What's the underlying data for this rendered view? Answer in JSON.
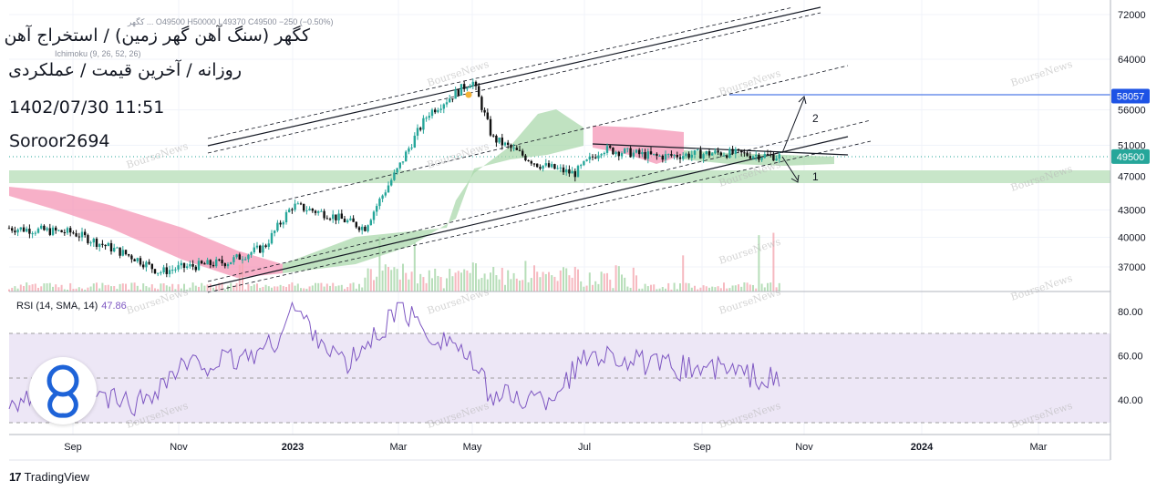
{
  "header": {
    "title_line": "کگهر (سنگ آهن گهر زمین) / استخراج آهن",
    "subtitle_line": "روزانه / آخرین قیمت / عملکردی",
    "datetime": "1402/07/30 11:51",
    "author": "Soroor2694"
  },
  "legend": {
    "ohlc_line": "کگهر ... O49500 H50000 L49370 C49500 −250 (−0.50%)",
    "ichimoku_line": "Ichimoku (9, 26, 52, 26)"
  },
  "rsi_label": {
    "name": "RSI (14, SMA, 14)",
    "value": "47.86"
  },
  "watermark": "BourseNews",
  "footer": {
    "brand": "TradingView",
    "mark": "17"
  },
  "colors": {
    "up": "#26a69a",
    "down": "#111111",
    "cloud_bull": "#a5d6a7",
    "cloud_bear": "#f48fb1",
    "rsi": "#7e57c2",
    "rsi_band": "#ede7f6",
    "target_line": "#1e53e5",
    "support_zone": "#c8e6c9"
  },
  "chart_data": [
    {
      "type": "candlestick",
      "title": "کگهر (سنگ آهن گهر زمین) / استخراج آهن",
      "y_axis": {
        "ticks": [
          37000,
          40000,
          43000,
          47000,
          51000,
          56000,
          64000,
          72000
        ],
        "scale": "log",
        "ylim": [
          34500,
          74000
        ]
      },
      "x_axis": {
        "tick_labels": [
          "Sep",
          "Nov",
          "2023",
          "Mar",
          "May",
          "Jul",
          "Sep",
          "Nov",
          "2024",
          "Mar"
        ]
      },
      "price_markers": [
        {
          "label": "58057",
          "value": 58057,
          "color": "#1e53e5"
        },
        {
          "label": "49500",
          "value": 49500,
          "color": "#26a69a"
        }
      ],
      "annotations": [
        {
          "text": "2",
          "meaning": "upside target to 58057"
        },
        {
          "text": "1",
          "meaning": "downside to support zone"
        }
      ],
      "support_zone": [
        46400,
        48000
      ],
      "series": [
        {
          "name": "Close",
          "points": [
            [
              "Aug",
              41000
            ],
            [
              "Sep",
              40500
            ],
            [
              "Oct",
              37800
            ],
            [
              "Oct-late",
              36500
            ],
            [
              "Nov",
              36900
            ],
            [
              "Dec",
              37500
            ],
            [
              "Dec-late",
              39000
            ],
            [
              "2023",
              43500
            ],
            [
              "Jan-late",
              42500
            ],
            [
              "Feb",
              41000
            ],
            [
              "Mar",
              48000
            ],
            [
              "Mar-late",
              55500
            ],
            [
              "Apr",
              57500
            ],
            [
              "May",
              60500
            ],
            [
              "May-mid",
              52000
            ],
            [
              "Jun",
              48500
            ],
            [
              "Jun-late",
              47300
            ],
            [
              "Jul",
              50500
            ],
            [
              "Aug",
              49500
            ],
            [
              "Sep",
              50000
            ],
            [
              "Oct",
              49500
            ]
          ]
        }
      ]
    },
    {
      "type": "line",
      "title": "RSI (14, SMA, 14)",
      "y_axis": {
        "ticks": [
          40.0,
          60.0,
          80.0
        ],
        "ylim": [
          28,
          86
        ],
        "band": [
          30,
          70
        ],
        "midline": 50
      },
      "series": [
        {
          "name": "RSI",
          "points": [
            [
              "Aug",
              40
            ],
            [
              "Sep",
              44
            ],
            [
              "Oct",
              38
            ],
            [
              "Nov",
              55
            ],
            [
              "Dec",
              58
            ],
            [
              "2023",
              65
            ],
            [
              "Jan",
              82
            ],
            [
              "Feb",
              55
            ],
            [
              "Mar",
              72
            ],
            [
              "Mar-late",
              83
            ],
            [
              "Apr",
              70
            ],
            [
              "May",
              66
            ],
            [
              "May-mid",
              42
            ],
            [
              "Jun",
              40
            ],
            [
              "Jul",
              62
            ],
            [
              "Aug",
              55
            ],
            [
              "Sep",
              54
            ],
            [
              "Oct",
              47.86
            ]
          ]
        }
      ]
    }
  ]
}
